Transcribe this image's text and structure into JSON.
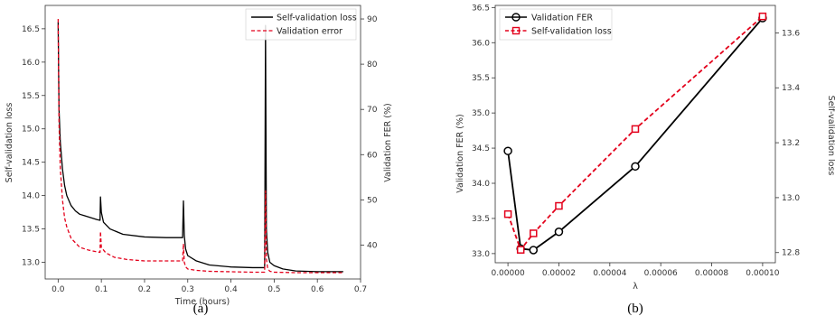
{
  "chart_data": [
    {
      "type": "line",
      "caption": "(a)",
      "xlabel": "Time (hours)",
      "ylabel": "Self-validation loss",
      "ylabel_right": "Validation FER (%)",
      "xlim": [
        -0.03,
        0.7
      ],
      "ylim": [
        12.75,
        16.85
      ],
      "ylim_right": [
        32.5,
        93.0
      ],
      "xticks": [
        "0.0",
        "0.1",
        "0.2",
        "0.3",
        "0.4",
        "0.5",
        "0.6",
        "0.7"
      ],
      "yticks": [
        "13.0",
        "13.5",
        "14.0",
        "14.5",
        "15.0",
        "15.5",
        "16.0",
        "16.5"
      ],
      "yticks_right": [
        "40",
        "50",
        "60",
        "70",
        "80",
        "90"
      ],
      "legend": {
        "position": "top-right"
      },
      "series": [
        {
          "name": "Self-validation loss",
          "axis": "left",
          "color": "#000000",
          "style": "solid",
          "x": [
            0.0,
            0.002,
            0.005,
            0.01,
            0.015,
            0.02,
            0.03,
            0.04,
            0.05,
            0.06,
            0.07,
            0.08,
            0.09,
            0.097,
            0.098,
            0.1,
            0.105,
            0.12,
            0.15,
            0.2,
            0.25,
            0.288,
            0.29,
            0.292,
            0.295,
            0.3,
            0.32,
            0.35,
            0.4,
            0.45,
            0.478,
            0.48,
            0.482,
            0.485,
            0.49,
            0.5,
            0.52,
            0.55,
            0.6,
            0.66
          ],
          "y": [
            16.6,
            15.3,
            14.8,
            14.4,
            14.15,
            14.0,
            13.85,
            13.77,
            13.72,
            13.7,
            13.68,
            13.66,
            13.64,
            13.63,
            13.98,
            13.75,
            13.6,
            13.5,
            13.42,
            13.38,
            13.37,
            13.37,
            13.92,
            13.4,
            13.2,
            13.1,
            13.02,
            12.96,
            12.93,
            12.92,
            12.92,
            16.55,
            13.5,
            13.15,
            13.0,
            12.95,
            12.9,
            12.87,
            12.86,
            12.86
          ]
        },
        {
          "name": "Validation error",
          "axis": "right",
          "color": "#e3001b",
          "style": "dashed",
          "x": [
            0.0,
            0.002,
            0.005,
            0.01,
            0.015,
            0.02,
            0.03,
            0.04,
            0.05,
            0.06,
            0.07,
            0.08,
            0.09,
            0.097,
            0.098,
            0.1,
            0.11,
            0.13,
            0.16,
            0.2,
            0.25,
            0.288,
            0.29,
            0.292,
            0.295,
            0.3,
            0.32,
            0.35,
            0.4,
            0.45,
            0.478,
            0.48,
            0.482,
            0.485,
            0.49,
            0.5,
            0.55,
            0.6,
            0.66
          ],
          "y": [
            90,
            67,
            57,
            50,
            46,
            44,
            41.5,
            40.5,
            39.5,
            39.2,
            38.9,
            38.7,
            38.5,
            38.4,
            43,
            39.5,
            38.3,
            37.3,
            36.8,
            36.5,
            36.5,
            36.5,
            40.3,
            36.2,
            35.2,
            34.7,
            34.4,
            34.2,
            34.1,
            34.0,
            34.0,
            52.0,
            37.0,
            34.8,
            34.2,
            34.0,
            33.9,
            33.9,
            33.9
          ]
        }
      ]
    },
    {
      "type": "line",
      "caption": "(b)",
      "xlabel": "λ",
      "ylabel": "Validation FER (%)",
      "ylabel_right": "Self-validation loss",
      "xlim": [
        -5e-06,
        0.000105
      ],
      "ylim": [
        32.87,
        36.53
      ],
      "ylim_right": [
        12.763,
        13.7
      ],
      "xticks": [
        "0.00000",
        "0.00002",
        "0.00004",
        "0.00006",
        "0.00008",
        "0.00010"
      ],
      "xtick_values": [
        0,
        2e-05,
        4e-05,
        6e-05,
        8e-05,
        0.0001
      ],
      "yticks": [
        "33.0",
        "33.5",
        "34.0",
        "34.5",
        "35.0",
        "35.5",
        "36.0",
        "36.5"
      ],
      "yticks_right": [
        "12.8",
        "13.0",
        "13.2",
        "13.4",
        "13.6"
      ],
      "legend": {
        "position": "top-left"
      },
      "series": [
        {
          "name": "Validation FER",
          "axis": "left",
          "color": "#000000",
          "style": "solid",
          "marker": "circle",
          "x": [
            0,
            5e-06,
            1e-05,
            2e-05,
            5e-05,
            0.0001
          ],
          "y": [
            34.46,
            33.07,
            33.05,
            33.31,
            34.24,
            36.35
          ]
        },
        {
          "name": "Self-validation loss",
          "axis": "right",
          "color": "#e3001b",
          "style": "dashed",
          "marker": "square",
          "x": [
            0,
            5e-06,
            1e-05,
            2e-05,
            5e-05,
            0.0001
          ],
          "y": [
            12.94,
            12.81,
            12.87,
            12.97,
            13.25,
            13.66
          ]
        }
      ]
    }
  ]
}
